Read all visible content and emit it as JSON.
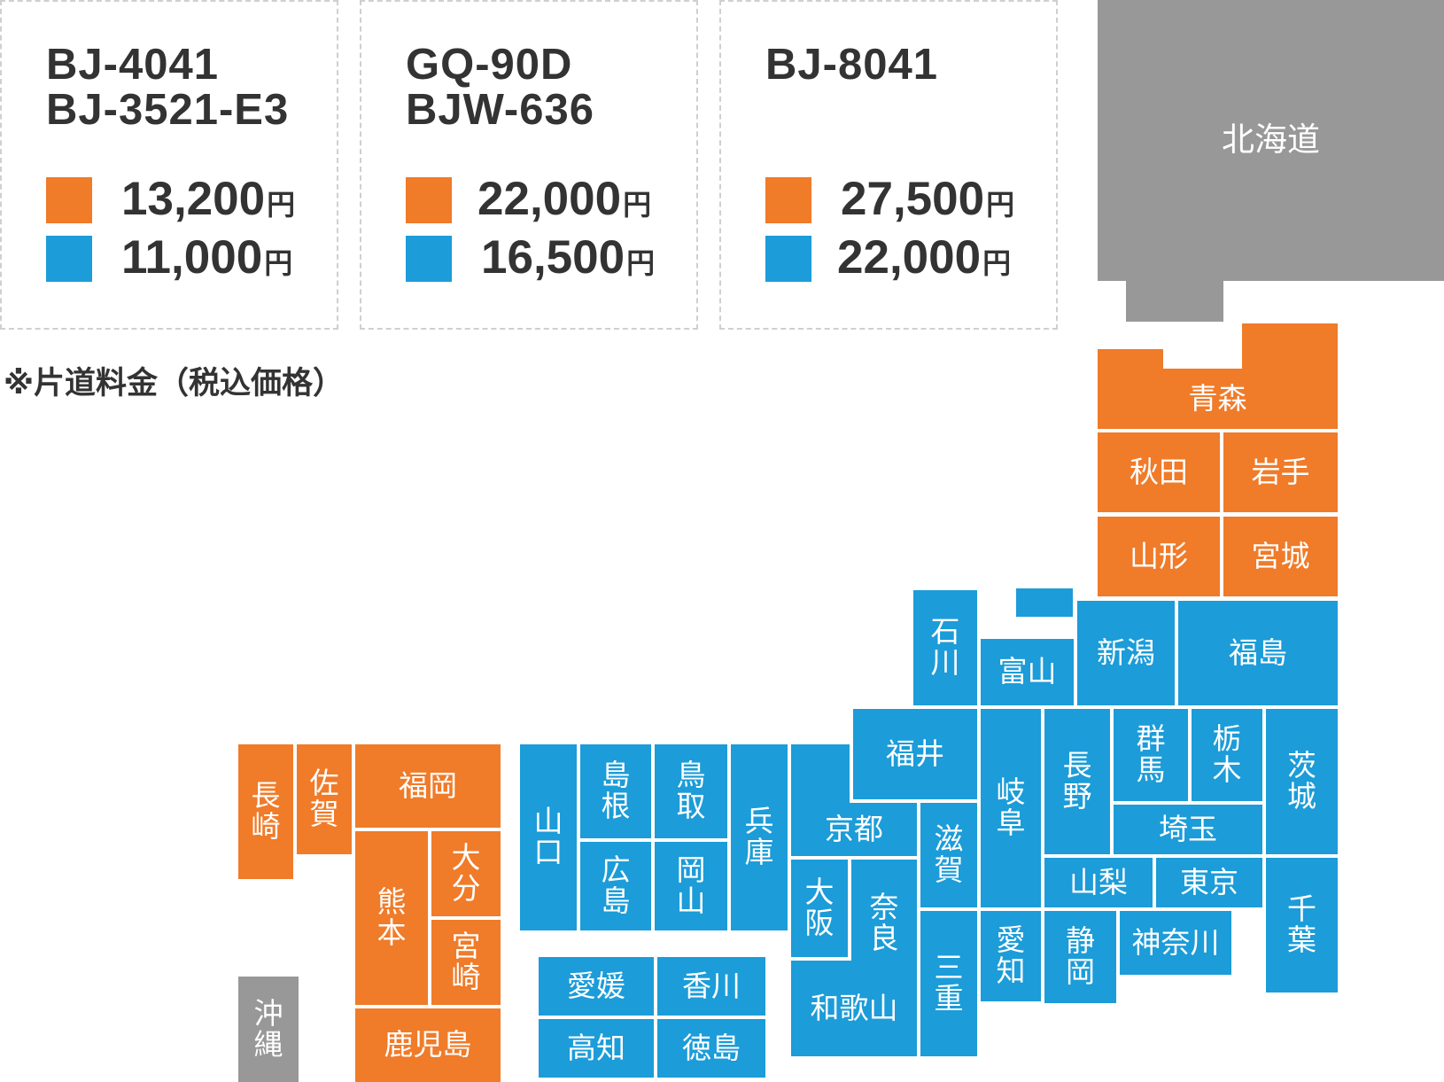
{
  "colors": {
    "orange": "#f07b29",
    "blue": "#1c9cd8",
    "gray": "#989898"
  },
  "cards": [
    {
      "models": [
        "BJ-4041",
        "BJ-3521-E3"
      ],
      "orange_price": "13,200",
      "blue_price": "11,000"
    },
    {
      "models": [
        "GQ-90D",
        "BJW-636"
      ],
      "orange_price": "22,000",
      "blue_price": "16,500"
    },
    {
      "models": [
        "BJ-8041"
      ],
      "orange_price": "27,500",
      "blue_price": "22,000"
    }
  ],
  "yen_unit": "円",
  "note": "※片道料金（税込価格）",
  "prefectures": {
    "hokkaido": "北海道",
    "aomori": "青森",
    "akita": "秋田",
    "iwate": "岩手",
    "yamagata": "山形",
    "miyagi": "宮城",
    "ishikawa": "石川",
    "toyama": "富山",
    "niigata": "新潟",
    "fukushima": "福島",
    "fukui": "福井",
    "gifu": "岐阜",
    "nagano": "長野",
    "gunma": "群馬",
    "tochigi": "栃木",
    "ibaraki": "茨城",
    "saitama": "埼玉",
    "yamanashi": "山梨",
    "tokyo": "東京",
    "chiba": "千葉",
    "aichi": "愛知",
    "shizuoka": "静岡",
    "kanagawa": "神奈川",
    "kyoto": "京都",
    "shiga": "滋賀",
    "osaka": "大阪",
    "nara": "奈良",
    "mie": "三重",
    "wakayama": "和歌山",
    "hyogo": "兵庫",
    "yamaguchi": "山口",
    "shimane": "島根",
    "tottori": "鳥取",
    "hiroshima": "広島",
    "okayama": "岡山",
    "ehime": "愛媛",
    "kagawa": "香川",
    "kochi": "高知",
    "tokushima": "徳島",
    "nagasaki": "長崎",
    "saga": "佐賀",
    "fukuoka": "福岡",
    "kumamoto": "熊本",
    "oita": "大分",
    "miyazaki": "宮崎",
    "kagoshima": "鹿児島",
    "okinawa": "沖縄"
  }
}
